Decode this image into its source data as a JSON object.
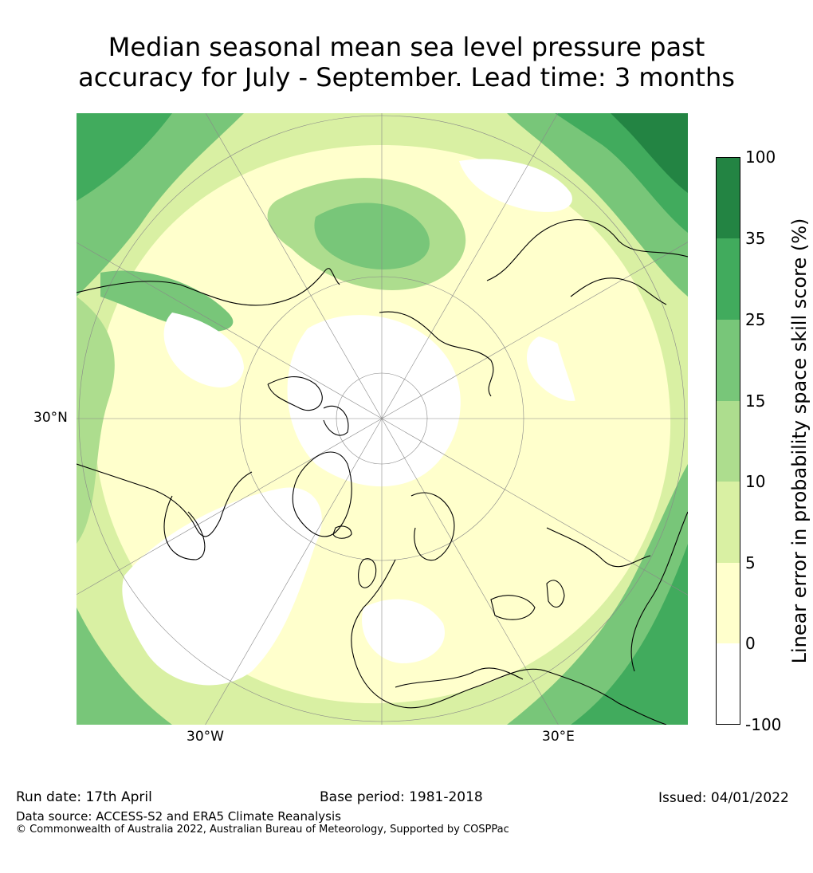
{
  "title_line1": "Median seasonal mean sea level pressure past",
  "title_line2": "accuracy for July - September. Lead time: 3 months",
  "map": {
    "projection": "north-polar-stereographic",
    "lat_label": "30°N",
    "lon_label_left": "30°W",
    "lon_label_right": "30°E",
    "graticule_color": "#888888",
    "coastline_color": "#000000"
  },
  "colorbar": {
    "label": "Linear error in probability space skill score (%)",
    "ticks": [
      "100",
      "35",
      "25",
      "15",
      "10",
      "5",
      "0",
      "-100"
    ],
    "levels": [
      {
        "range": "25-35",
        "color": "#41ab5d"
      },
      {
        "range": "35-100",
        "color": "#238443"
      },
      {
        "range": "15-25",
        "color": "#78c679"
      },
      {
        "range": "10-15",
        "color": "#addd8e"
      },
      {
        "range": "5-10",
        "color": "#d9f0a3"
      },
      {
        "range": "0-5",
        "color": "#ffffcc"
      },
      {
        "range": "-100-0",
        "color": "#ffffff"
      }
    ]
  },
  "footer": {
    "run_date": "Run date: 17th April",
    "base_period": "Base period: 1981-2018",
    "issued": "Issued: 04/01/2022",
    "data_source": "Data source: ACCESS-S2 and ERA5 Climate Reanalysis",
    "copyright": "© Commonwealth of Australia 2022, Australian Bureau of Meteorology, Supported by COSPPac"
  }
}
